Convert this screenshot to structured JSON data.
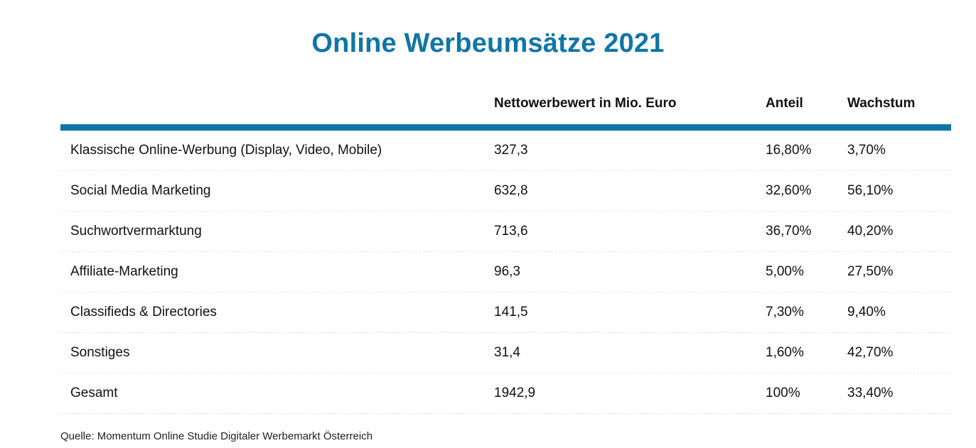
{
  "chart_data": {
    "type": "table",
    "title": "Online Werbeumsätze 2021",
    "columns": [
      "",
      "Nettowerbewert in Mio. Euro",
      "Anteil",
      "Wachstum"
    ],
    "rows": [
      [
        "Klassische Online-Werbung (Display, Video, Mobile)",
        "327,3",
        "16,80%",
        "3,70%"
      ],
      [
        "Social Media Marketing",
        "632,8",
        "32,60%",
        "56,10%"
      ],
      [
        "Suchwortvermarktung",
        "713,6",
        "36,70%",
        "40,20%"
      ],
      [
        "Affiliate-Marketing",
        "96,3",
        "5,00%",
        "27,50%"
      ],
      [
        "Classifieds & Directories",
        "141,5",
        "7,30%",
        "9,40%"
      ],
      [
        "Sonstiges",
        "31,4",
        "1,60%",
        "42,70%"
      ],
      [
        "Gesamt",
        "1942,9",
        "100%",
        "33,40%"
      ]
    ],
    "source": "Quelle: Momentum Online Studie Digitaler Werbemarkt Österreich",
    "accent_color": "#0f76a6"
  }
}
